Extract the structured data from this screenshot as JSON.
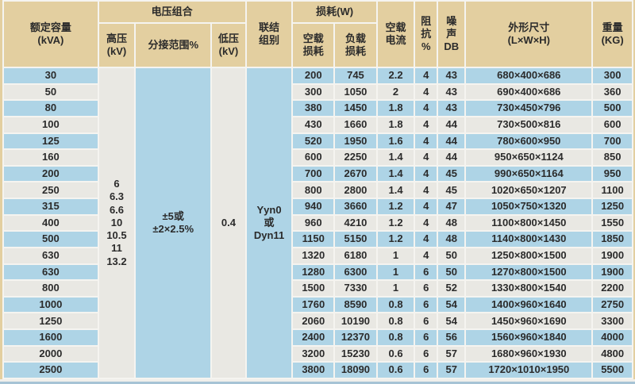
{
  "colors": {
    "beige": "#e3cfa0",
    "blue": "#aed4e6",
    "gray": "#e9e8e3",
    "grid": "#f5f4f0",
    "text": "#2b2b2b",
    "bottom_bar": "#a6c3d5",
    "gap_strip": "#f0efeb"
  },
  "header": {
    "rated_capacity": "额定容量\n(kVA)",
    "voltage_combination": "电压组合",
    "high_voltage": "高压\n(kV)",
    "tapping_range": "分接范围%",
    "low_voltage": "低压\n(kV)",
    "connection_group": "联结\n组别",
    "loss": "损耗(W)",
    "no_load_loss": "空载\n损耗",
    "load_loss": "负载\n损耗",
    "no_load_current": "空载\n电流",
    "impedance": "阻\n抗\n%",
    "noise": "噪\n声\nDB",
    "dimensions": "外形尺寸\n(L×W×H)",
    "weight": "重量\n(KG)"
  },
  "merged": {
    "high_voltage_values": "6\n6.3\n6.6\n10\n10.5\n11\n13.2",
    "tapping_range_value": "±5或\n±2×2.5%",
    "low_voltage_value": "0.4",
    "connection_group_value": "Yyn0\n或\nDyn11"
  },
  "table": {
    "rows": [
      [
        "30",
        "200",
        "745",
        "2.2",
        "4",
        "43",
        "680×400×686",
        "300"
      ],
      [
        "50",
        "300",
        "1050",
        "2",
        "4",
        "43",
        "690×400×686",
        "360"
      ],
      [
        "80",
        "380",
        "1450",
        "1.8",
        "4",
        "43",
        "730×450×796",
        "500"
      ],
      [
        "100",
        "430",
        "1660",
        "1.8",
        "4",
        "44",
        "730×500×816",
        "600"
      ],
      [
        "125",
        "520",
        "1950",
        "1.6",
        "4",
        "44",
        "780×600×950",
        "700"
      ],
      [
        "160",
        "600",
        "2250",
        "1.4",
        "4",
        "44",
        "950×650×1124",
        "850"
      ],
      [
        "200",
        "700",
        "2670",
        "1.4",
        "4",
        "45",
        "990×650×1164",
        "950"
      ],
      [
        "250",
        "800",
        "2800",
        "1.4",
        "4",
        "45",
        "1020×650×1207",
        "1100"
      ],
      [
        "315",
        "940",
        "3660",
        "1.2",
        "4",
        "47",
        "1050×750×1320",
        "1250"
      ],
      [
        "400",
        "960",
        "4210",
        "1.2",
        "4",
        "48",
        "1100×800×1450",
        "1550"
      ],
      [
        "500",
        "1150",
        "5150",
        "1.2",
        "4",
        "48",
        "1140×800×1430",
        "1850"
      ],
      [
        "630",
        "1320",
        "6180",
        "1",
        "4",
        "50",
        "1250×800×1500",
        "1900"
      ],
      [
        "630",
        "1280",
        "6300",
        "1",
        "6",
        "50",
        "1270×800×1500",
        "1900"
      ],
      [
        "800",
        "1500",
        "7330",
        "1",
        "6",
        "52",
        "1330×800×1540",
        "2200"
      ],
      [
        "1000",
        "1760",
        "8590",
        "0.8",
        "6",
        "54",
        "1400×960×1640",
        "2750"
      ],
      [
        "1250",
        "2060",
        "10190",
        "0.8",
        "6",
        "54",
        "1450×960×1690",
        "3300"
      ],
      [
        "1600",
        "2400",
        "12370",
        "0.8",
        "6",
        "56",
        "1560×960×1840",
        "4000"
      ],
      [
        "2000",
        "3200",
        "15230",
        "0.6",
        "6",
        "57",
        "1680×960×1930",
        "4800"
      ],
      [
        "2500",
        "3800",
        "18090",
        "0.6",
        "6",
        "57",
        "1720×1010×1950",
        "5500"
      ]
    ]
  }
}
